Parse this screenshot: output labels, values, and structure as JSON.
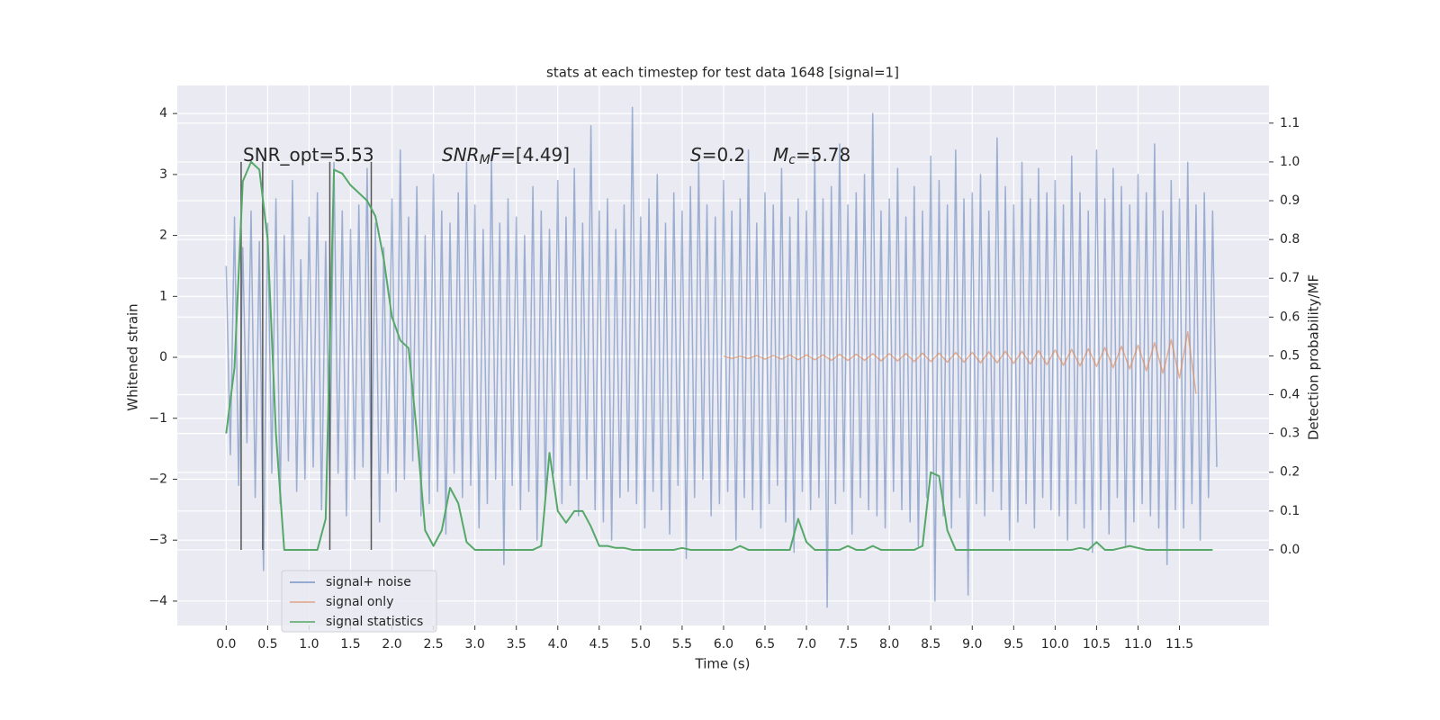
{
  "chart_data": {
    "type": "line",
    "title": "stats at each timestep for test data 1648 [signal=1]",
    "xlabel": "Time (s)",
    "ylabel": "Whitened strain",
    "y2label": "Detection probability/MF",
    "xlim": [
      -0.59,
      12.58
    ],
    "ylim": [
      -4.4,
      4.46
    ],
    "y2lim": [
      -0.195,
      1.197
    ],
    "xticks": [
      {
        "value": 0,
        "label": "0.0"
      },
      0.5,
      {
        "value": 1,
        "label": "1.0"
      },
      1.5,
      {
        "value": 2,
        "label": "2.0"
      },
      2.5,
      {
        "value": 3,
        "label": "3.0"
      },
      3.5,
      {
        "value": 4,
        "label": "4.0"
      },
      4.5,
      {
        "value": 5,
        "label": "5.0"
      },
      5.5,
      {
        "value": 6,
        "label": "6.0"
      },
      6.5,
      {
        "value": 7,
        "label": "7.0"
      },
      7.5,
      {
        "value": 8,
        "label": "8.0"
      },
      8.5,
      {
        "value": 9,
        "label": "9.0"
      },
      9.5,
      {
        "value": 10,
        "label": "10.0"
      },
      10.5,
      {
        "value": 11,
        "label": "11.0"
      },
      11.5
    ],
    "yticks": [
      {
        "value": -4,
        "label": "−4"
      },
      {
        "value": -3,
        "label": "−3"
      },
      {
        "value": -2,
        "label": "−2"
      },
      {
        "value": -1,
        "label": "−1"
      },
      0,
      1,
      2,
      3,
      4
    ],
    "y2ticks": [
      {
        "value": 0,
        "label": "0.0"
      },
      0.1,
      0.2,
      0.3,
      0.4,
      0.5,
      0.6,
      0.7,
      0.8,
      0.9,
      {
        "value": 1,
        "label": "1.0"
      },
      1.1
    ],
    "grid": true,
    "series": [
      {
        "name": "signal+ noise",
        "color": "#4c72b0",
        "x": [
          0,
          0.05,
          0.1,
          0.15,
          0.2,
          0.25,
          0.3,
          0.35,
          0.4,
          0.45,
          0.5,
          0.55,
          0.6,
          0.65,
          0.7,
          0.75,
          0.8,
          0.85,
          0.9,
          0.95,
          1,
          1.05,
          1.1,
          1.15,
          1.2,
          1.25,
          1.3,
          1.35,
          1.4,
          1.45,
          1.5,
          1.55,
          1.6,
          1.65,
          1.7,
          1.75,
          1.8,
          1.85,
          1.9,
          1.95,
          2,
          2.05,
          2.1,
          2.15,
          2.2,
          2.25,
          2.3,
          2.35,
          2.4,
          2.45,
          2.5,
          2.55,
          2.6,
          2.65,
          2.7,
          2.75,
          2.8,
          2.85,
          2.9,
          2.95,
          3,
          3.05,
          3.1,
          3.15,
          3.2,
          3.25,
          3.3,
          3.35,
          3.4,
          3.45,
          3.5,
          3.55,
          3.6,
          3.65,
          3.7,
          3.75,
          3.8,
          3.85,
          3.9,
          3.95,
          4,
          4.05,
          4.1,
          4.15,
          4.2,
          4.25,
          4.3,
          4.35,
          4.4,
          4.45,
          4.5,
          4.55,
          4.6,
          4.65,
          4.7,
          4.75,
          4.8,
          4.85,
          4.9,
          4.95,
          5,
          5.05,
          5.1,
          5.15,
          5.2,
          5.25,
          5.3,
          5.35,
          5.4,
          5.45,
          5.5,
          5.55,
          5.6,
          5.65,
          5.7,
          5.75,
          5.8,
          5.85,
          5.9,
          5.95,
          6,
          6.05,
          6.1,
          6.15,
          6.2,
          6.25,
          6.3,
          6.35,
          6.4,
          6.45,
          6.5,
          6.55,
          6.6,
          6.65,
          6.7,
          6.75,
          6.8,
          6.85,
          6.9,
          6.95,
          7,
          7.05,
          7.1,
          7.15,
          7.2,
          7.25,
          7.3,
          7.35,
          7.4,
          7.45,
          7.5,
          7.55,
          7.6,
          7.65,
          7.7,
          7.75,
          7.8,
          7.85,
          7.9,
          7.95,
          8,
          8.05,
          8.1,
          8.15,
          8.2,
          8.25,
          8.3,
          8.35,
          8.4,
          8.45,
          8.5,
          8.55,
          8.6,
          8.65,
          8.7,
          8.75,
          8.8,
          8.85,
          8.9,
          8.95,
          9,
          9.05,
          9.1,
          9.15,
          9.2,
          9.25,
          9.3,
          9.35,
          9.4,
          9.45,
          9.5,
          9.55,
          9.6,
          9.65,
          9.7,
          9.75,
          9.8,
          9.85,
          9.9,
          9.95,
          10,
          10.05,
          10.1,
          10.15,
          10.2,
          10.25,
          10.3,
          10.35,
          10.4,
          10.45,
          10.5,
          10.55,
          10.6,
          10.65,
          10.7,
          10.75,
          10.8,
          10.85,
          10.9,
          10.95,
          11,
          11.05,
          11.1,
          11.15,
          11.2,
          11.25,
          11.3,
          11.35,
          11.4,
          11.45,
          11.5,
          11.55,
          11.6,
          11.65,
          11.7,
          11.75,
          11.8,
          11.85,
          11.9,
          11.95
        ],
        "values": [
          1.5,
          -1.6,
          2.3,
          -2.1,
          1.8,
          -1.4,
          2.4,
          -2.3,
          1.9,
          -3.5,
          2.2,
          -1.9,
          2.6,
          -2.4,
          2.0,
          -1.7,
          2.9,
          -2.2,
          1.6,
          -2.0,
          2.3,
          -1.8,
          2.7,
          -2.5,
          1.9,
          -2.1,
          3.2,
          -1.9,
          2.4,
          -2.6,
          2.1,
          -2.0,
          2.5,
          -1.8,
          3.1,
          -2.3,
          2.2,
          -2.7,
          1.8,
          -1.9,
          2.6,
          -2.2,
          3.4,
          -2.0,
          2.3,
          -1.7,
          2.8,
          -2.6,
          2.0,
          -2.4,
          3.0,
          -2.2,
          2.4,
          -2.9,
          2.2,
          -1.9,
          2.7,
          -2.3,
          3.2,
          -2.1,
          2.5,
          -2.8,
          2.1,
          -2.4,
          3.3,
          -2.0,
          2.2,
          -3.4,
          2.6,
          -2.1,
          2.3,
          -2.5,
          2.0,
          -2.2,
          2.8,
          -3.0,
          2.4,
          -2.3,
          2.1,
          -1.9,
          2.9,
          -2.4,
          2.3,
          -2.1,
          3.1,
          -2.6,
          2.2,
          -2.0,
          3.8,
          -2.5,
          2.4,
          -2.7,
          2.6,
          -3.0,
          2.1,
          -2.3,
          2.5,
          -2.2,
          4.1,
          -2.4,
          2.3,
          -2.8,
          2.6,
          -2.2,
          3.0,
          -2.5,
          2.2,
          -2.9,
          2.7,
          -2.1,
          2.4,
          -3.3,
          2.8,
          -2.3,
          3.2,
          -2.0,
          2.5,
          -2.6,
          2.3,
          -2.4,
          2.9,
          -2.2,
          2.4,
          -3.0,
          2.6,
          -2.3,
          3.4,
          -2.5,
          2.2,
          -2.8,
          2.7,
          -2.4,
          2.5,
          -2.1,
          3.1,
          -2.7,
          2.3,
          -3.2,
          2.6,
          -2.2,
          2.4,
          -2.5,
          3.3,
          -2.3,
          2.6,
          -4.1,
          2.8,
          -2.4,
          3.5,
          -2.2,
          2.5,
          -2.9,
          2.7,
          -2.3,
          3.0,
          -2.5,
          4.0,
          -2.6,
          2.4,
          -2.8,
          2.6,
          -2.2,
          3.1,
          -2.5,
          2.3,
          -2.7,
          2.8,
          -3.1,
          2.4,
          -2.3,
          3.3,
          -4.0,
          2.9,
          -2.6,
          2.5,
          -2.8,
          3.4,
          -2.3,
          2.6,
          -3.9,
          2.7,
          -2.4,
          3.0,
          -2.6,
          2.4,
          -2.2,
          3.6,
          -2.5,
          2.8,
          -3.0,
          2.5,
          -2.7,
          3.2,
          -2.4,
          2.6,
          -2.8,
          3.1,
          -2.3,
          2.7,
          -2.5,
          2.9,
          -2.6,
          2.5,
          -3.0,
          3.3,
          -2.4,
          2.7,
          -2.8,
          2.4,
          -3.2,
          3.4,
          -2.5,
          2.6,
          -2.9,
          3.1,
          -2.3,
          2.8,
          -3.1,
          2.5,
          -2.7,
          3.0,
          -2.4,
          2.7,
          -2.6,
          3.5,
          -2.8,
          2.4,
          -3.4,
          2.9,
          -2.5,
          2.6,
          -2.8,
          3.2,
          -2.4,
          2.5,
          -3.0,
          2.7,
          -2.3,
          2.4,
          -1.8
        ]
      },
      {
        "name": "signal only",
        "color": "#dd8452",
        "x": [
          6.0,
          6.1,
          6.2,
          6.3,
          6.4,
          6.5,
          6.6,
          6.7,
          6.8,
          6.9,
          7.0,
          7.1,
          7.2,
          7.3,
          7.4,
          7.5,
          7.6,
          7.7,
          7.8,
          7.9,
          8.0,
          8.1,
          8.2,
          8.3,
          8.4,
          8.5,
          8.6,
          8.7,
          8.8,
          8.9,
          9.0,
          9.1,
          9.2,
          9.3,
          9.4,
          9.5,
          9.6,
          9.7,
          9.8,
          9.9,
          10.0,
          10.1,
          10.2,
          10.3,
          10.4,
          10.5,
          10.6,
          10.7,
          10.8,
          10.9,
          11.0,
          11.1,
          11.2,
          11.3,
          11.4,
          11.5,
          11.6,
          11.7
        ],
        "values": [
          0.02,
          -0.02,
          0.02,
          -0.02,
          0.03,
          -0.03,
          0.03,
          -0.03,
          0.04,
          -0.04,
          0.04,
          -0.04,
          0.04,
          -0.05,
          0.05,
          -0.05,
          0.05,
          -0.05,
          0.06,
          -0.06,
          0.06,
          -0.06,
          0.06,
          -0.07,
          0.07,
          -0.07,
          0.07,
          -0.08,
          0.08,
          -0.08,
          0.08,
          -0.09,
          0.09,
          -0.09,
          0.1,
          -0.1,
          0.1,
          -0.11,
          0.11,
          -0.12,
          0.12,
          -0.13,
          0.13,
          -0.14,
          0.14,
          -0.15,
          0.16,
          -0.17,
          0.18,
          -0.19,
          0.2,
          -0.22,
          0.24,
          -0.26,
          0.29,
          -0.34,
          0.42,
          -0.6
        ]
      },
      {
        "name": "signal statistics",
        "color": "#55a868",
        "axis": "y2",
        "x": [
          0.0,
          0.1,
          0.2,
          0.3,
          0.4,
          0.5,
          0.6,
          0.7,
          0.8,
          0.9,
          1.0,
          1.1,
          1.2,
          1.3,
          1.4,
          1.5,
          1.6,
          1.7,
          1.8,
          1.9,
          2.0,
          2.1,
          2.2,
          2.3,
          2.4,
          2.5,
          2.6,
          2.7,
          2.8,
          2.9,
          3.0,
          3.1,
          3.2,
          3.3,
          3.4,
          3.5,
          3.6,
          3.7,
          3.8,
          3.9,
          4.0,
          4.1,
          4.2,
          4.3,
          4.4,
          4.5,
          4.6,
          4.7,
          4.8,
          4.9,
          5.0,
          5.1,
          5.2,
          5.3,
          5.4,
          5.5,
          5.6,
          5.7,
          5.8,
          5.9,
          6.0,
          6.1,
          6.2,
          6.3,
          6.4,
          6.5,
          6.6,
          6.7,
          6.8,
          6.9,
          7.0,
          7.1,
          7.2,
          7.3,
          7.4,
          7.5,
          7.6,
          7.7,
          7.8,
          7.9,
          8.0,
          8.1,
          8.2,
          8.3,
          8.4,
          8.5,
          8.6,
          8.7,
          8.8,
          8.9,
          9.0,
          9.1,
          9.2,
          9.3,
          9.4,
          9.5,
          9.6,
          9.7,
          9.8,
          9.9,
          10.0,
          10.1,
          10.2,
          10.3,
          10.4,
          10.5,
          10.6,
          10.7,
          10.8,
          10.9,
          11.0,
          11.1,
          11.2,
          11.3,
          11.4,
          11.5,
          11.6,
          11.7,
          11.8,
          11.9
        ],
        "values": [
          0.3,
          0.47,
          0.95,
          1.0,
          0.98,
          0.8,
          0.3,
          0.0,
          0.0,
          0.0,
          0.0,
          0.0,
          0.08,
          0.98,
          0.97,
          0.94,
          0.92,
          0.9,
          0.86,
          0.75,
          0.6,
          0.54,
          0.52,
          0.3,
          0.05,
          0.01,
          0.05,
          0.16,
          0.12,
          0.02,
          0.0,
          0.0,
          0.0,
          0.0,
          0.0,
          0.0,
          0.0,
          0.0,
          0.01,
          0.25,
          0.1,
          0.07,
          0.1,
          0.1,
          0.06,
          0.01,
          0.01,
          0.005,
          0.005,
          0.0,
          0.0,
          0.0,
          0.0,
          0.0,
          0.0,
          0.005,
          0.0,
          0.0,
          0.0,
          0.0,
          0.0,
          0.0,
          0.01,
          0.0,
          0.0,
          0.0,
          0.0,
          0.0,
          0.0,
          0.08,
          0.02,
          0.0,
          0.0,
          0.0,
          0.0,
          0.01,
          0.0,
          0.0,
          0.01,
          0.0,
          0.0,
          0.0,
          0.0,
          0.0,
          0.01,
          0.2,
          0.19,
          0.05,
          0.0,
          0.0,
          0.0,
          0.0,
          0.0,
          0.0,
          0.0,
          0.0,
          0.0,
          0.0,
          0.0,
          0.0,
          0.0,
          0.0,
          0.0,
          0.005,
          0.0,
          0.02,
          0.0,
          0.0,
          0.005,
          0.01,
          0.005,
          0.0,
          0.0,
          0.0,
          0.0,
          0.0,
          0.0,
          0.0,
          0.0,
          0.0
        ]
      }
    ],
    "vlines": {
      "x": [
        0.18,
        0.44,
        1.25,
        1.75
      ],
      "ymin": 0,
      "ymax": 1,
      "axis": "y2",
      "color": "#555555"
    },
    "annotations": [
      {
        "parts": [
          {
            "text": "SNR_opt=5.53"
          }
        ]
      },
      {
        "parts": [
          {
            "text": "SNR",
            "italic": true
          },
          {
            "text": "M",
            "italic": true,
            "sub": true
          },
          {
            "text": "F",
            "italic": true
          },
          {
            "text": "=[4.49]"
          }
        ]
      },
      {
        "parts": [
          {
            "text": "S",
            "italic": true
          },
          {
            "text": "=0.2"
          }
        ]
      },
      {
        "parts": [
          {
            "text": "M",
            "italic": true
          },
          {
            "text": "c",
            "italic": true,
            "sub": true
          },
          {
            "text": "=5.78"
          }
        ]
      }
    ]
  }
}
